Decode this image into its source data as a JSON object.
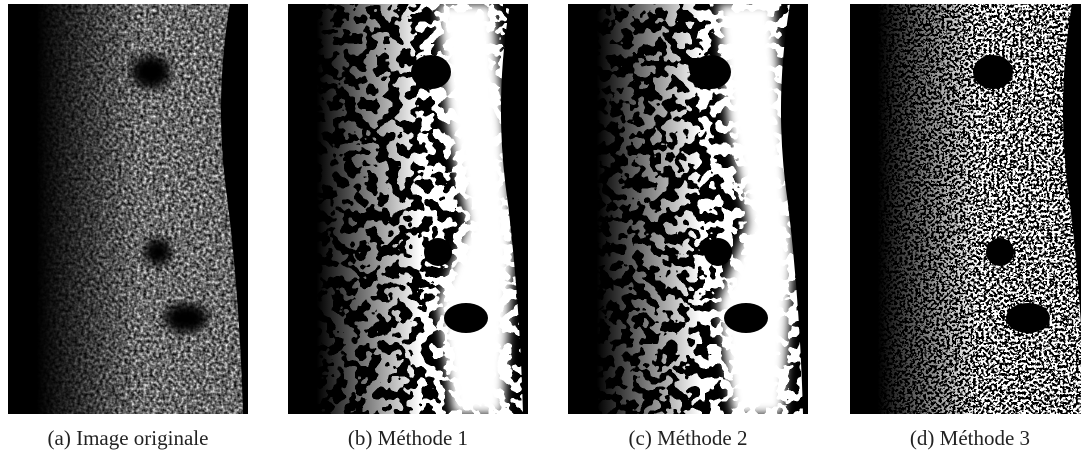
{
  "figure": {
    "panels": [
      {
        "caption": "(a) Image originale"
      },
      {
        "caption": "(b) Méthode 1"
      },
      {
        "caption": "(c) Méthode 2"
      },
      {
        "caption": "(d) Méthode 3"
      }
    ]
  }
}
